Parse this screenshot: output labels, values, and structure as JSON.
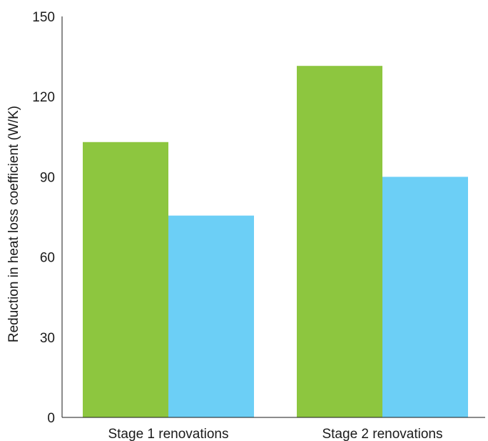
{
  "chart_data": {
    "type": "bar",
    "title": "",
    "xlabel": "",
    "ylabel": "Reduction in heat loss coefficient (W/K)",
    "categories": [
      "Stage 1 renovations",
      "Stage 2 renovations"
    ],
    "series": [
      {
        "values": [
          103,
          131.5
        ],
        "color": "#8dc63f"
      },
      {
        "values": [
          75.5,
          90
        ],
        "color": "#6ccff6"
      }
    ],
    "ylim": [
      0,
      150
    ],
    "yticks": [
      0,
      30,
      60,
      90,
      120,
      150
    ],
    "grid": false,
    "legend": "none"
  }
}
